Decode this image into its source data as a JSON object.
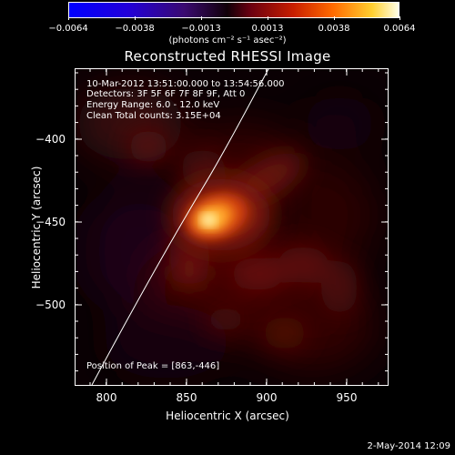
{
  "colorbar": {
    "ticks": [
      "−0.0064",
      "−0.0038",
      "−0.0013",
      "0.0013",
      "0.0038",
      "0.0064"
    ],
    "units": "(photons cm⁻² s⁻¹ asec⁻²)"
  },
  "title": "Reconstructed RHESSI Image",
  "info": {
    "line1": "10-Mar-2012 13:51:00.000 to 13:54:56.000",
    "line2": "Detectors: 3F 5F 6F 7F 8F 9F, Att 0",
    "line3": "Energy Range: 6.0 - 12.0 keV",
    "line4": "Clean     Total counts: 3.15E+04"
  },
  "peak_text": "Position of Peak = [863,-446]",
  "axes": {
    "xlabel": "Heliocentric X (arcsec)",
    "ylabel": "Heliocentric Y (arcsec)",
    "xticks": [
      "800",
      "850",
      "900",
      "950"
    ],
    "yticks": [
      "−400",
      "−450",
      "−500"
    ]
  },
  "timestamp": "2-May-2014 12:09",
  "colors": {
    "background": "#000000",
    "foreground": "#ffffff"
  }
}
